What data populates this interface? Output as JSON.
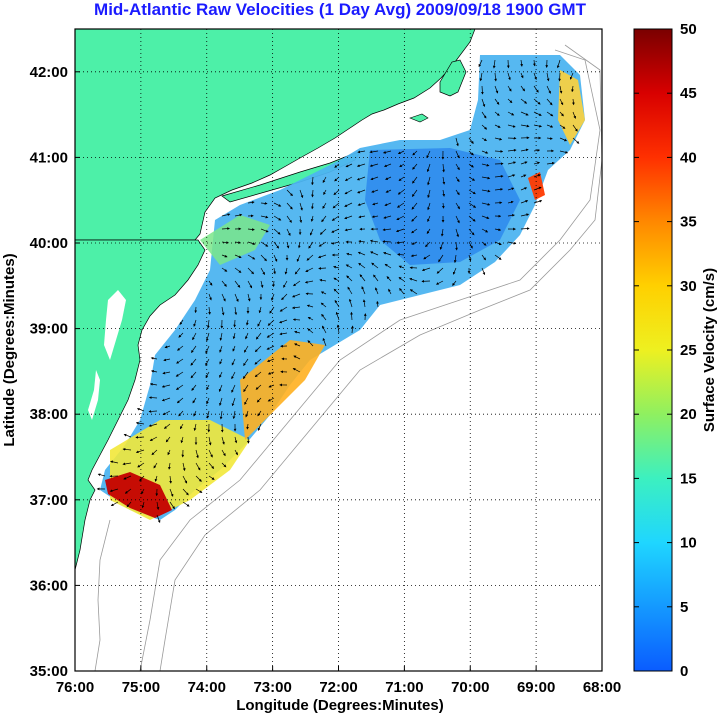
{
  "title": "Mid-Atlantic Raw Velocities (1 Day Avg) 2009/09/18 1900 GMT",
  "x_axis": {
    "label": "Longitude (Degrees:Minutes)",
    "ticks": [
      "76:00",
      "75:00",
      "74:00",
      "73:00",
      "72:00",
      "71:00",
      "70:00",
      "69:00",
      "68:00"
    ]
  },
  "y_axis": {
    "label": "Latitude (Degrees:Minutes)",
    "ticks": [
      "42:00",
      "41:00",
      "40:00",
      "39:00",
      "38:00",
      "37:00",
      "36:00",
      "35:00"
    ]
  },
  "colorbar": {
    "label": "Surface Velocity (cm/s)",
    "ticks": [
      "50",
      "45",
      "40",
      "35",
      "30",
      "25",
      "20",
      "15",
      "10",
      "5",
      "0"
    ],
    "range": [
      0,
      50
    ]
  },
  "colors": {
    "land": "#4df0a8",
    "title": "#1b1bff",
    "grid": "#000000"
  },
  "map": {
    "lon_range": [
      -76,
      -68
    ],
    "lat_range": [
      35,
      42.5
    ],
    "grid": true
  }
}
